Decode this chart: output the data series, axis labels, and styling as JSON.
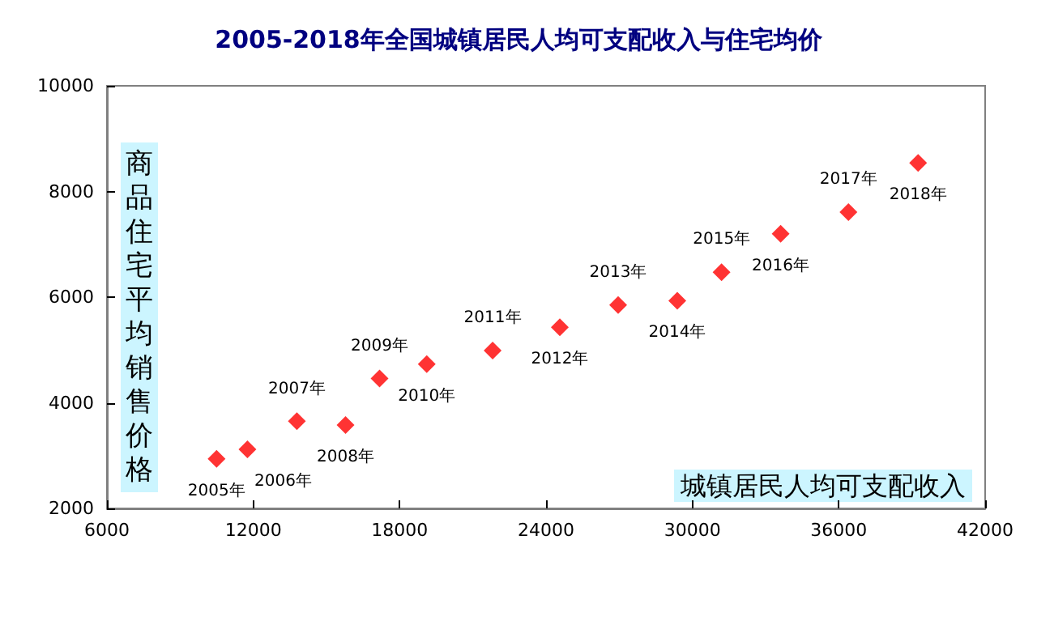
{
  "chart_data": {
    "type": "scatter",
    "title": "2005-2018年全国城镇居民人均可支配收入与住宅均价",
    "xlabel": "城镇居民人均可支配收入",
    "ylabel": "商品住宅平均销售价格",
    "x": [
      10493,
      11759,
      13786,
      15781,
      17175,
      19109,
      21810,
      24565,
      26955,
      29381,
      31195,
      33616,
      36396,
      39251
    ],
    "series": [
      {
        "color": "#ff0000",
        "values": [
          2940,
          3120,
          3650,
          3580,
          4460,
          4730,
          4990,
          5430,
          5850,
          5930,
          6470,
          7200,
          7610,
          8540
        ]
      }
    ],
    "annotations": [
      {
        "text": "2005年",
        "x": 10493,
        "y": 2937
      },
      {
        "text": "2006年",
        "x": 11759,
        "y": 3119
      },
      {
        "text": "2007年",
        "x": 13786,
        "y": 3645
      },
      {
        "text": "2008年",
        "x": 15781,
        "y": 3576
      },
      {
        "text": "2009年",
        "x": 17175,
        "y": 4459
      },
      {
        "text": "2010年",
        "x": 19109,
        "y": 4725
      },
      {
        "text": "2011年",
        "x": 21810,
        "y": 4993
      },
      {
        "text": "2012年",
        "x": 24565,
        "y": 5430
      },
      {
        "text": "2013年",
        "x": 26955,
        "y": 5850
      },
      {
        "text": "2014年",
        "x": 29381,
        "y": 5933
      },
      {
        "text": "2015年",
        "x": 31195,
        "y": 6473
      },
      {
        "text": "2016年",
        "x": 33616,
        "y": 7203
      },
      {
        "text": "2017年",
        "x": 36396,
        "y": 7614
      },
      {
        "text": "2018年",
        "x": 39251,
        "y": 8544
      }
    ],
    "xlim": [
      6000,
      42000
    ],
    "xticks": [
      6000,
      12000,
      18000,
      24000,
      30000,
      36000,
      42000
    ],
    "ylim": [
      2000,
      10000
    ],
    "yticks": [
      2000,
      4000,
      6000,
      8000,
      10000
    ],
    "grid": false,
    "marker": "diamond"
  }
}
